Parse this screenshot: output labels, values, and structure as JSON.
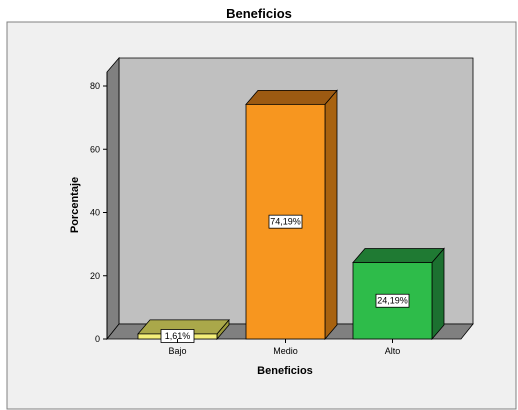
{
  "chart_data": {
    "type": "bar",
    "title": "Beneficios",
    "xlabel": "Beneficios",
    "ylabel": "Porcentaje",
    "categories": [
      "Bajo",
      "Medio",
      "Alto"
    ],
    "values": [
      1.61,
      74.19,
      24.19
    ],
    "data_labels": [
      "1,61%",
      "74,19%",
      "24,19%"
    ],
    "ylim": [
      0,
      80
    ],
    "yticks": [
      0,
      20,
      40,
      60,
      80
    ],
    "ytick_labels": [
      "0",
      "20",
      "40",
      "60",
      "80"
    ],
    "grid": false,
    "three_d": true,
    "colors": {
      "Bajo": {
        "front": "#f5f07a",
        "top": "#aaa84a",
        "side": "#9c9a3c"
      },
      "Medio": {
        "front": "#f7961f",
        "top": "#9c5a12",
        "side": "#a8620f"
      },
      "Alto": {
        "front": "#2ebc4a",
        "top": "#1f7a33",
        "side": "#1c7030"
      }
    },
    "plot_background": "#c0c0c0",
    "outer_background": "#f0f0f0"
  }
}
